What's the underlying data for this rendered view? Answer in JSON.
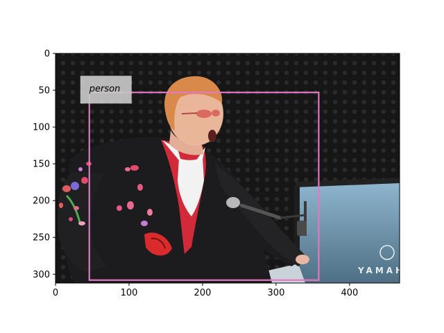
{
  "figure": {
    "type": "image-with-detection-overlay"
  },
  "axes": {
    "xlim": [
      0,
      468
    ],
    "ylim_inverted": [
      312,
      0
    ],
    "xticks": [
      "0",
      "100",
      "200",
      "300",
      "400"
    ],
    "yticks": [
      "0",
      "50",
      "100",
      "150",
      "200",
      "250",
      "300"
    ]
  },
  "photo": {
    "subject_icon": "pianist-performer-photo",
    "piano_brand_text": "YAMAHA"
  },
  "detections": [
    {
      "label": "person",
      "box": {
        "x_min": 46,
        "y_min": 53,
        "x_max": 358,
        "y_max": 308
      },
      "color": "#e377c2"
    }
  ],
  "colors": {
    "backdrop": "#1a1a1a",
    "box_stroke": "#e377c2",
    "label_bg": "#c8c8c8"
  }
}
